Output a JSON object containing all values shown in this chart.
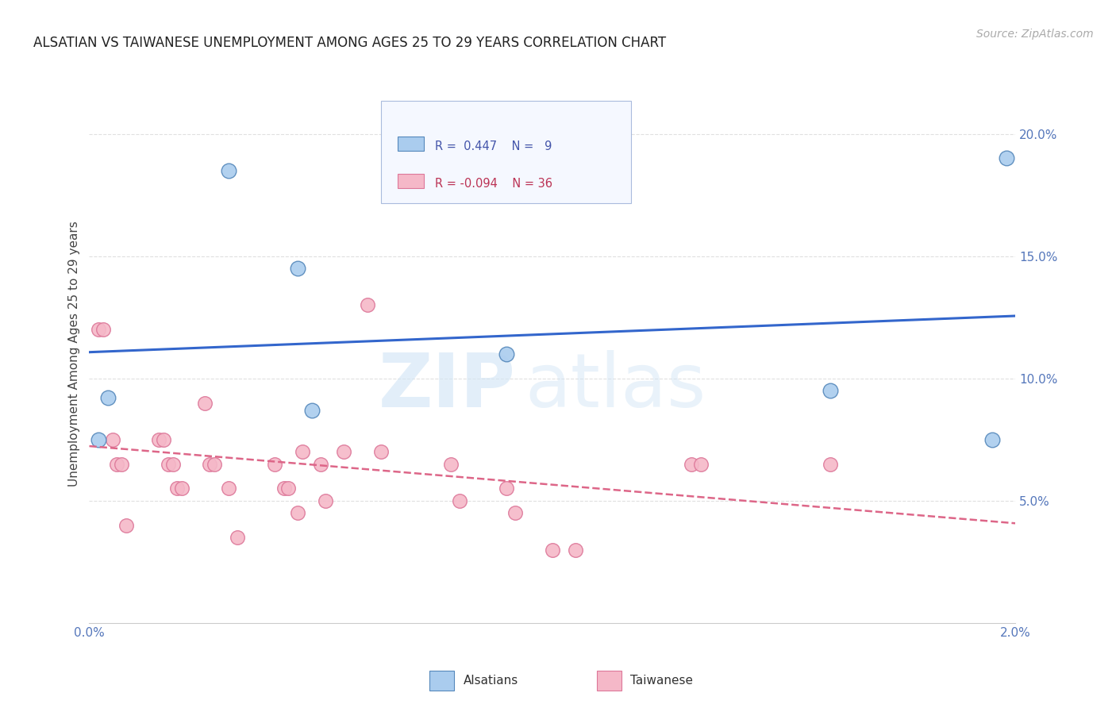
{
  "title": "ALSATIAN VS TAIWANESE UNEMPLOYMENT AMONG AGES 25 TO 29 YEARS CORRELATION CHART",
  "source": "Source: ZipAtlas.com",
  "ylabel": "Unemployment Among Ages 25 to 29 years",
  "watermark_zip": "ZIP",
  "watermark_atlas": "atlas",
  "xlim": [
    0.0,
    0.02
  ],
  "ylim": [
    0.0,
    0.22
  ],
  "yticks": [
    0.05,
    0.1,
    0.15,
    0.2
  ],
  "ytick_labels": [
    "5.0%",
    "10.0%",
    "15.0%",
    "20.0%"
  ],
  "xticks": [
    0.0,
    0.004,
    0.008,
    0.012,
    0.016,
    0.02
  ],
  "xtick_labels": [
    "0.0%",
    "",
    "",
    "",
    "",
    "2.0%"
  ],
  "alsatian_color": "#aaccee",
  "taiwanese_color": "#f5b8c8",
  "alsatian_edge": "#5588bb",
  "taiwanese_edge": "#dd7799",
  "trend_blue": "#3366cc",
  "trend_pink": "#dd6688",
  "legend_label1": "Alsatians",
  "legend_label2": "Taiwanese",
  "alsatian_x": [
    0.0002,
    0.0004,
    0.003,
    0.0045,
    0.0048,
    0.009,
    0.016,
    0.0195,
    0.0198
  ],
  "alsatian_y": [
    0.075,
    0.092,
    0.185,
    0.145,
    0.087,
    0.11,
    0.095,
    0.075,
    0.19
  ],
  "taiwanese_x": [
    0.0002,
    0.0003,
    0.0005,
    0.0006,
    0.0007,
    0.0008,
    0.0015,
    0.0016,
    0.0017,
    0.0018,
    0.0019,
    0.002,
    0.0025,
    0.0026,
    0.0027,
    0.003,
    0.0032,
    0.004,
    0.0042,
    0.0043,
    0.0045,
    0.0046,
    0.005,
    0.0051,
    0.0055,
    0.006,
    0.0063,
    0.0078,
    0.008,
    0.009,
    0.0092,
    0.01,
    0.0105,
    0.013,
    0.0132,
    0.016
  ],
  "taiwanese_y": [
    0.12,
    0.12,
    0.075,
    0.065,
    0.065,
    0.04,
    0.075,
    0.075,
    0.065,
    0.065,
    0.055,
    0.055,
    0.09,
    0.065,
    0.065,
    0.055,
    0.035,
    0.065,
    0.055,
    0.055,
    0.045,
    0.07,
    0.065,
    0.05,
    0.07,
    0.13,
    0.07,
    0.065,
    0.05,
    0.055,
    0.045,
    0.03,
    0.03,
    0.065,
    0.065,
    0.065
  ],
  "background_color": "#ffffff",
  "axis_tick_color": "#5577bb",
  "grid_color": "#dddddd",
  "title_fontsize": 12,
  "ylabel_fontsize": 11,
  "source_fontsize": 10,
  "tick_fontsize": 11
}
